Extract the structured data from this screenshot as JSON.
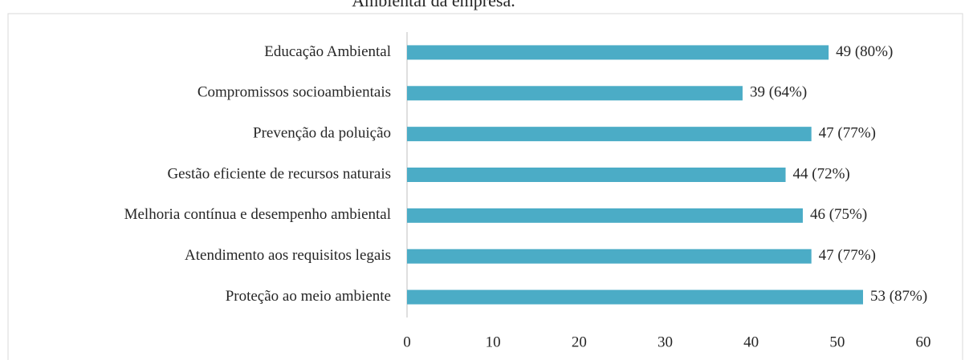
{
  "chart_data": {
    "type": "barh",
    "title": "Ambiental da empresa.",
    "categories": [
      "Educação Ambiental",
      "Compromissos socioambientais",
      "Prevenção da poluição",
      "Gestão eficiente de recursos naturais",
      "Melhoria contínua e desempenho ambiental",
      "Atendimento aos requisitos legais",
      "Proteção ao meio ambiente"
    ],
    "values": [
      49,
      39,
      47,
      44,
      46,
      47,
      53
    ],
    "value_labels": [
      "49 (80%)",
      "39 (64%)",
      "47 (77%)",
      "44 (72%)",
      "46 (75%)",
      "47 (77%)",
      "53 (87%)"
    ],
    "color": "#4bacc6",
    "xlim": [
      0,
      60
    ],
    "xticks": [
      0,
      10,
      20,
      30,
      40,
      50,
      60
    ],
    "grid": false
  }
}
